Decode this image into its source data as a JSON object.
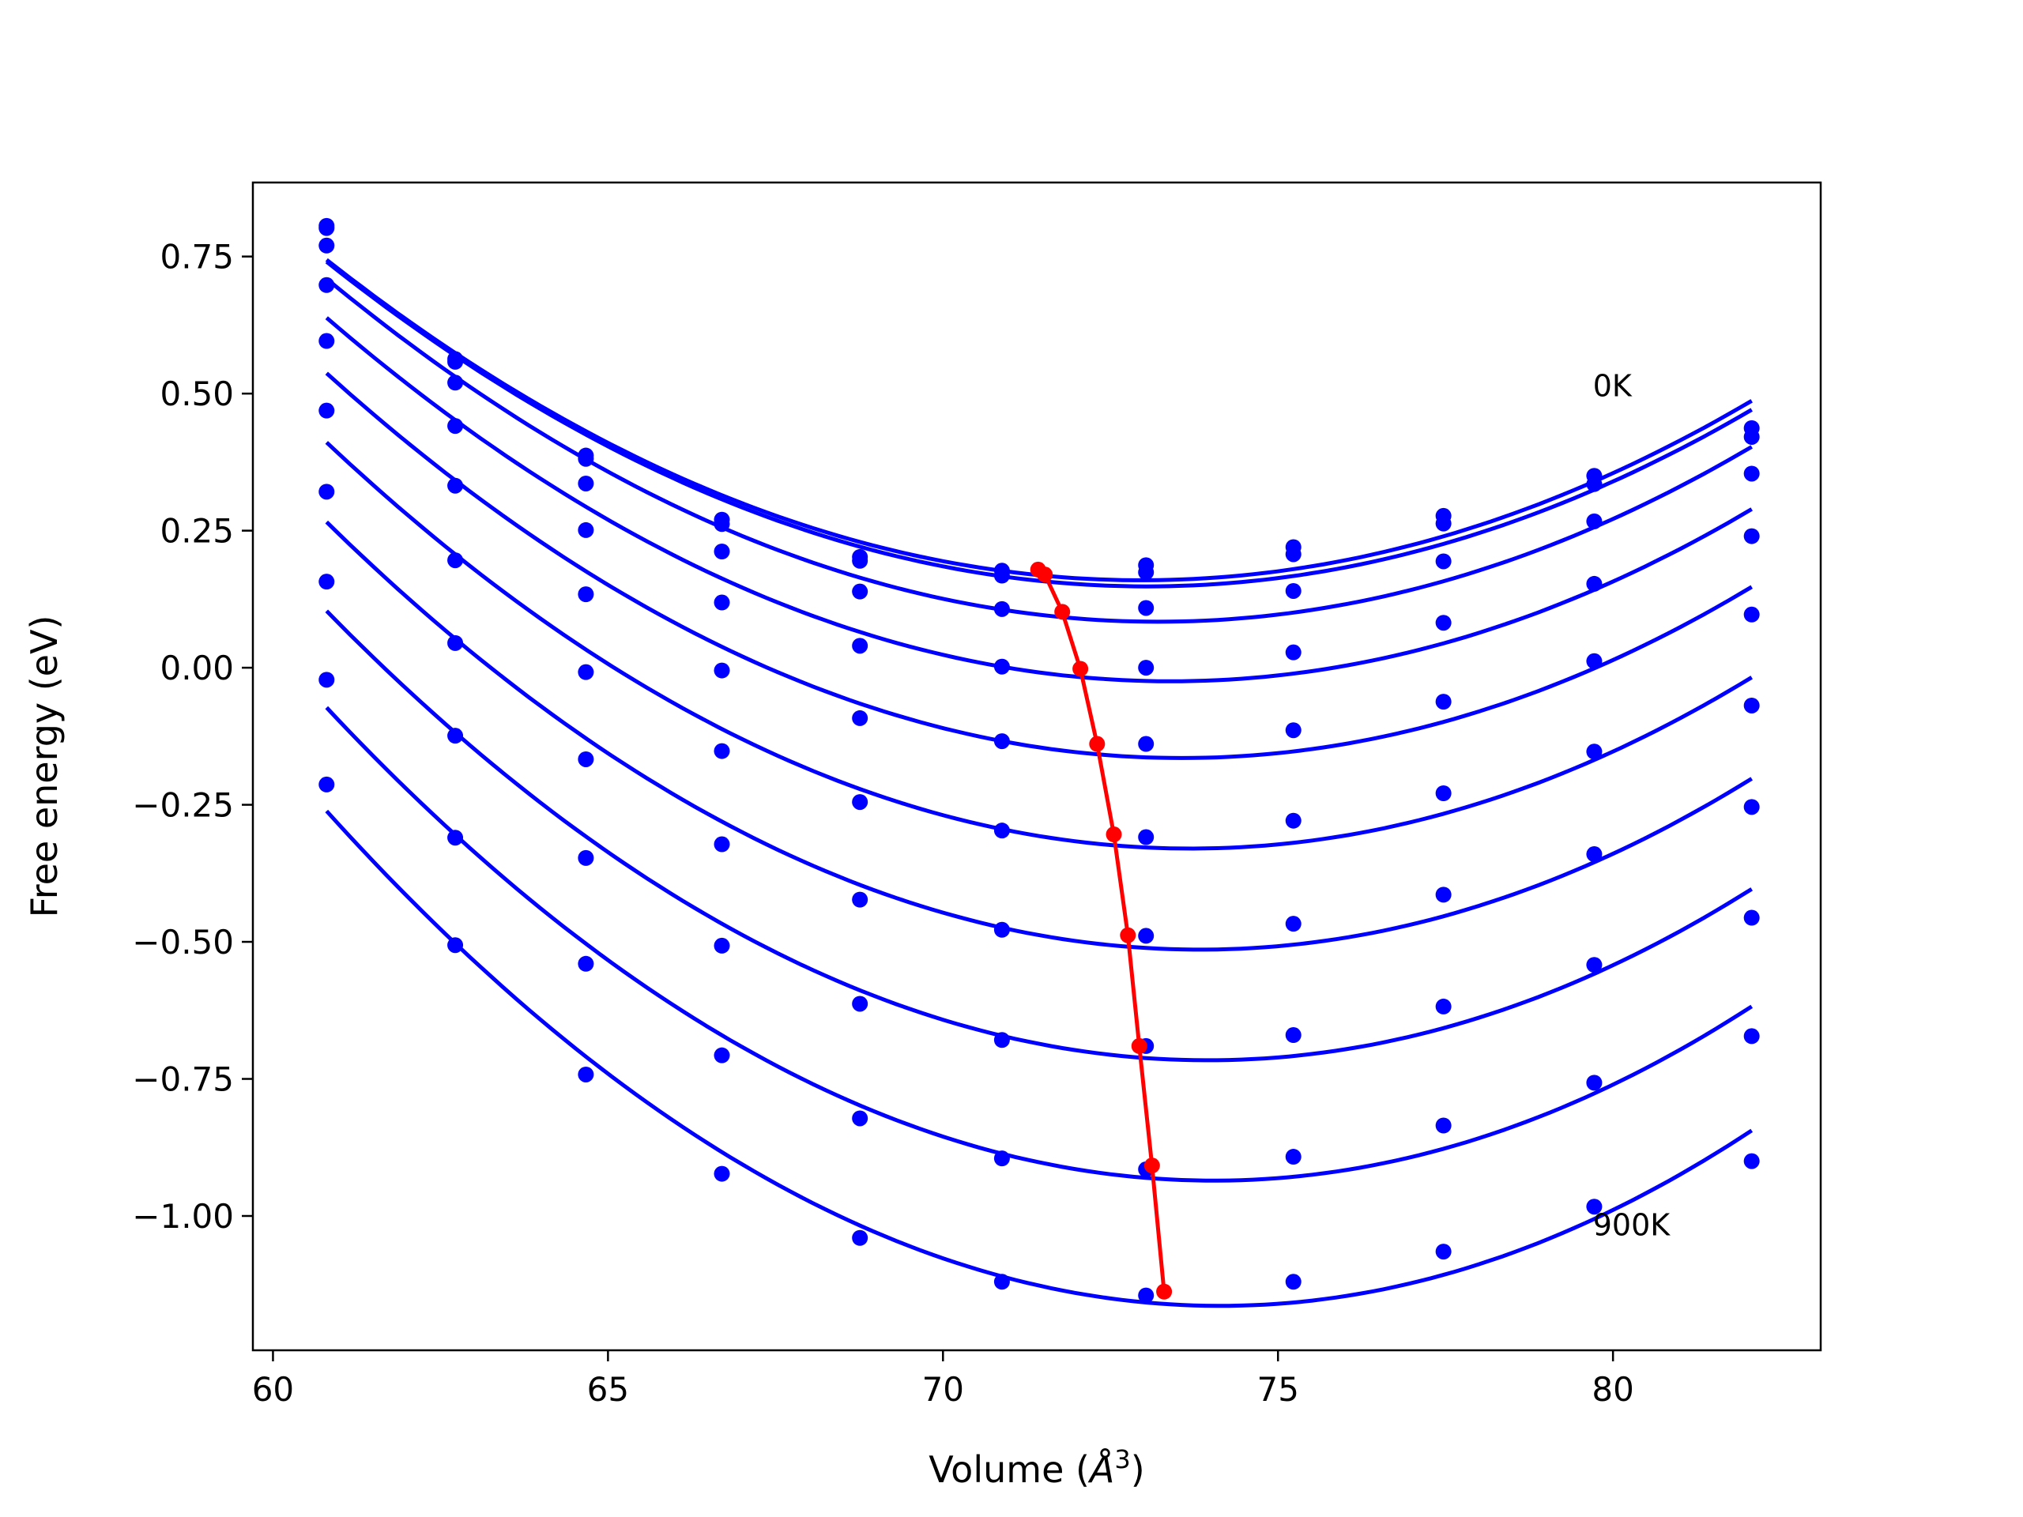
{
  "chart_data": {
    "type": "line",
    "xlabel_main": "Volume (",
    "xlabel_unit": "Å",
    "xlabel_sup": "3",
    "xlabel_close": ")",
    "ylabel": "Free energy (eV)",
    "xlim": [
      59.7,
      83.1
    ],
    "ylim": [
      -1.245,
      0.885
    ],
    "xticks": [
      60,
      65,
      70,
      75,
      80
    ],
    "xtick_labels": [
      "60",
      "65",
      "70",
      "75",
      "80"
    ],
    "yticks": [
      0.75,
      0.5,
      0.25,
      0.0,
      -0.25,
      -0.5,
      -0.75,
      -1.0
    ],
    "ytick_labels": [
      "0.75",
      "0.50",
      "0.25",
      "0.00",
      "−0.25",
      "−0.50",
      "−0.75",
      "−1.00"
    ],
    "grid": false,
    "annotations": [
      {
        "text": "0K",
        "x": 79.7,
        "y": 0.495
      },
      {
        "text": "900K",
        "x": 79.7,
        "y": -1.035
      }
    ],
    "colors": {
      "curves": "#0000ff",
      "minima": "#ff0000"
    },
    "volumes": [
      60.8,
      62.72,
      64.67,
      66.7,
      68.76,
      70.88,
      73.03,
      75.23,
      77.47,
      79.72,
      82.07
    ],
    "series": [
      {
        "values": [
          0.806,
          0.563,
          0.387,
          0.27,
          0.202,
          0.177,
          0.187,
          0.22,
          0.277,
          0.35,
          0.437
        ]
      },
      {
        "values": [
          0.802,
          0.558,
          0.381,
          0.262,
          0.195,
          0.168,
          0.174,
          0.207,
          0.263,
          0.335,
          0.421
        ]
      },
      {
        "values": [
          0.77,
          0.52,
          0.336,
          0.212,
          0.139,
          0.107,
          0.109,
          0.14,
          0.194,
          0.267,
          0.354
        ]
      },
      {
        "values": [
          0.698,
          0.441,
          0.251,
          0.119,
          0.04,
          0.002,
          0.0,
          0.028,
          0.082,
          0.153,
          0.24
        ]
      },
      {
        "values": [
          0.596,
          0.332,
          0.134,
          -0.005,
          -0.092,
          -0.134,
          -0.139,
          -0.114,
          -0.062,
          0.012,
          0.097
        ]
      },
      {
        "values": [
          0.469,
          0.196,
          -0.008,
          -0.152,
          -0.245,
          -0.297,
          -0.309,
          -0.279,
          -0.229,
          -0.153,
          -0.069
        ]
      },
      {
        "values": [
          0.321,
          0.045,
          -0.167,
          -0.322,
          -0.423,
          -0.478,
          -0.489,
          -0.467,
          -0.414,
          -0.34,
          -0.254
        ]
      },
      {
        "values": [
          0.157,
          -0.124,
          -0.347,
          -0.507,
          -0.613,
          -0.679,
          -0.69,
          -0.67,
          -0.618,
          -0.542,
          -0.456
        ]
      },
      {
        "values": [
          -0.022,
          -0.31,
          -0.54,
          -0.707,
          -0.822,
          -0.895,
          -0.915,
          -0.892,
          -0.835,
          -0.757,
          -0.672
        ]
      },
      {
        "values": [
          -0.213,
          -0.506,
          -0.742,
          -0.923,
          -1.04,
          -1.12,
          -1.145,
          -1.12,
          -1.065,
          -0.983,
          -0.9
        ]
      }
    ],
    "minima": {
      "x": [
        71.42,
        71.52,
        71.78,
        72.05,
        72.3,
        72.55,
        72.76,
        72.93,
        73.12,
        73.3
      ],
      "y": [
        0.179,
        0.17,
        0.102,
        -0.002,
        -0.139,
        -0.304,
        -0.488,
        -0.69,
        -0.908,
        -1.138
      ]
    }
  }
}
